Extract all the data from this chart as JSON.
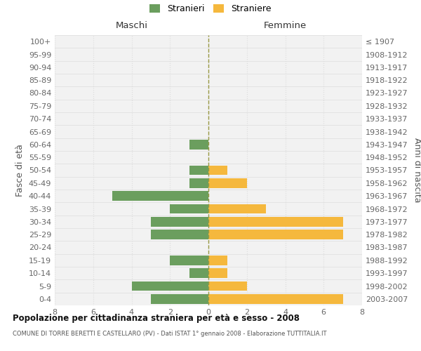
{
  "age_groups": [
    "100+",
    "95-99",
    "90-94",
    "85-89",
    "80-84",
    "75-79",
    "70-74",
    "65-69",
    "60-64",
    "55-59",
    "50-54",
    "45-49",
    "40-44",
    "35-39",
    "30-34",
    "25-29",
    "20-24",
    "15-19",
    "10-14",
    "5-9",
    "0-4"
  ],
  "birth_years": [
    "≤ 1907",
    "1908-1912",
    "1913-1917",
    "1918-1922",
    "1923-1927",
    "1928-1932",
    "1933-1937",
    "1938-1942",
    "1943-1947",
    "1948-1952",
    "1953-1957",
    "1958-1962",
    "1963-1967",
    "1968-1972",
    "1973-1977",
    "1978-1982",
    "1983-1987",
    "1988-1992",
    "1993-1997",
    "1998-2002",
    "2003-2007"
  ],
  "males": [
    0,
    0,
    0,
    0,
    0,
    0,
    0,
    0,
    1,
    0,
    1,
    1,
    5,
    2,
    3,
    3,
    0,
    2,
    1,
    4,
    3
  ],
  "females": [
    0,
    0,
    0,
    0,
    0,
    0,
    0,
    0,
    0,
    0,
    1,
    2,
    0,
    3,
    7,
    7,
    0,
    1,
    1,
    2,
    7
  ],
  "male_color": "#6b9e5e",
  "female_color": "#f5b83d",
  "title": "Popolazione per cittadinanza straniera per età e sesso - 2008",
  "subtitle": "COMUNE DI TORRE BERETTI E CASTELLARO (PV) - Dati ISTAT 1° gennaio 2008 - Elaborazione TUTTITALIA.IT",
  "xlabel_left": "Maschi",
  "xlabel_right": "Femmine",
  "ylabel_left": "Fasce di età",
  "ylabel_right": "Anni di nascita",
  "legend_male": "Stranieri",
  "legend_female": "Straniere",
  "xlim": 8,
  "background_color": "#ffffff",
  "plot_bg": "#f2f2f2",
  "grid_color": "#dddddd",
  "bar_height": 0.75,
  "center_line_color": "#999944"
}
